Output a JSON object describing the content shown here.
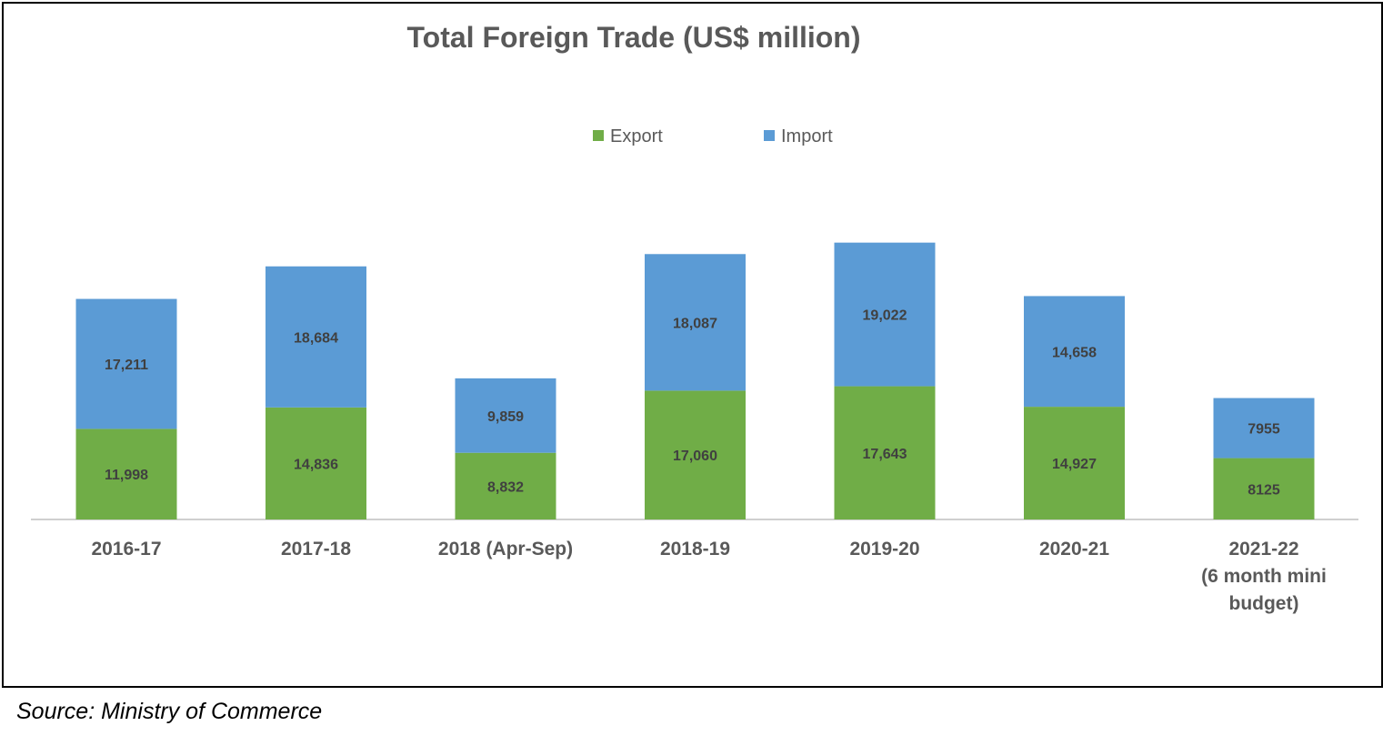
{
  "chart_data": {
    "type": "bar",
    "stacked": true,
    "title": "Total Foreign Trade (US$ million)",
    "categories": [
      [
        "2016-17"
      ],
      [
        "2017-18"
      ],
      [
        "2018 (Apr-Sep)"
      ],
      [
        "2018-19"
      ],
      [
        "2019-20"
      ],
      [
        "2020-21"
      ],
      [
        "2021-22",
        "(6 month mini",
        "budget)"
      ]
    ],
    "series": [
      {
        "name": "Export",
        "color": "#70ad47",
        "values": [
          11998,
          14836,
          8832,
          17060,
          17643,
          14927,
          8125
        ],
        "labels": [
          "11,998",
          "14,836",
          "8,832",
          "17,060",
          "17,643",
          "14,927",
          "8125"
        ]
      },
      {
        "name": "Import",
        "color": "#5b9bd5",
        "values": [
          17211,
          18684,
          9859,
          18087,
          19022,
          14658,
          7955
        ],
        "labels": [
          "17,211",
          "18,684",
          "9,859",
          "18,087",
          "19,022",
          "14,658",
          "7955"
        ]
      }
    ],
    "ylim": [
      0,
      40000
    ],
    "grid": false,
    "legend": "top-center",
    "xlabel": "",
    "ylabel": ""
  },
  "source": "Source: Ministry of Commerce"
}
